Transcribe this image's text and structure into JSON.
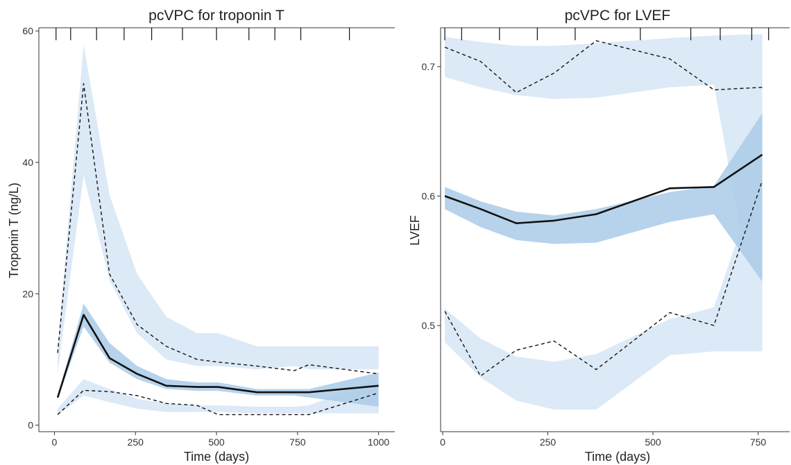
{
  "colors": {
    "pi_outer_band": "#dce9f6",
    "pi_median_band": "#aacbe8",
    "observed_median": "#111111",
    "observed_percentiles": "#111111",
    "axis": "#333333"
  },
  "chart_data": [
    {
      "type": "line",
      "title": "pcVPC for troponin T",
      "xlabel": "Time (days)",
      "ylabel": "Troponin T (ng/L)",
      "xlim": [
        -48,
        1050
      ],
      "ylim": [
        -1,
        60.5
      ],
      "xticks": [
        0,
        250,
        500,
        750,
        1000
      ],
      "xtick_labels": [
        "0",
        "250",
        "500",
        "750",
        "1000"
      ],
      "yticks": [
        0,
        20,
        40,
        60
      ],
      "ytick_labels": [
        "0",
        "20",
        "40",
        "60"
      ],
      "bin_markers": [
        5,
        50,
        130,
        215,
        300,
        395,
        500,
        600,
        680,
        760,
        910
      ],
      "grid": false,
      "x": [
        10,
        90,
        170,
        255,
        345,
        440,
        505,
        625,
        740,
        785,
        1000
      ],
      "bands": {
        "upper_pi": {
          "low": [
            8,
            38,
            22,
            14,
            10,
            9,
            9,
            8.5,
            9,
            8.5,
            8.5
          ],
          "high": [
            12,
            58,
            35,
            23,
            16.5,
            14,
            14,
            12,
            12,
            12,
            12
          ]
        },
        "median_pi": {
          "low": [
            4,
            15,
            9.5,
            7,
            5.5,
            5.2,
            5.2,
            4.5,
            4.5,
            4.2,
            2.8
          ],
          "high": [
            4.5,
            18.5,
            12.5,
            9,
            7,
            6.5,
            6.5,
            5.5,
            5.5,
            5.5,
            8
          ]
        },
        "lower_pi": {
          "low": [
            1.5,
            4.5,
            3.5,
            2.5,
            2,
            2,
            2,
            1.8,
            1.8,
            1.8,
            1.8
          ],
          "high": [
            2.5,
            7,
            5.5,
            4,
            3.3,
            3,
            3,
            2.8,
            2.8,
            3,
            7
          ]
        }
      },
      "series": [
        {
          "style": "solid",
          "values": [
            4.2,
            16.8,
            10.2,
            7.8,
            6.0,
            5.8,
            5.8,
            5.0,
            5.0,
            5.0,
            6.0
          ]
        },
        {
          "style": "dashed",
          "values": [
            11,
            52,
            23,
            15.3,
            12,
            10,
            9.6,
            9,
            8.3,
            9.2,
            7.8
          ]
        },
        {
          "style": "dashed",
          "values": [
            1.6,
            5.3,
            5.1,
            4.5,
            3.3,
            3.0,
            1.6,
            1.6,
            1.6,
            1.6,
            4.9
          ]
        }
      ]
    },
    {
      "type": "line",
      "title": "pcVPC for LVEF",
      "xlabel": "Time (days)",
      "ylabel": "LVEF",
      "xlim": [
        -5,
        825
      ],
      "ylim": [
        0.418,
        0.73
      ],
      "xticks": [
        0,
        250,
        500,
        750
      ],
      "xtick_labels": [
        "0",
        "250",
        "500",
        "750"
      ],
      "yticks": [
        0.5,
        0.6,
        0.7
      ],
      "ytick_labels": [
        "0.5",
        "0.6",
        "0.7"
      ],
      "bin_markers": [
        5,
        45,
        135,
        225,
        315,
        470,
        590,
        660,
        735,
        775
      ],
      "grid": false,
      "x": [
        5,
        90,
        175,
        265,
        365,
        540,
        645,
        760
      ],
      "bands": {
        "upper_pi": {
          "low": [
            0.692,
            0.684,
            0.678,
            0.675,
            0.676,
            0.684,
            0.686,
            0.48
          ],
          "high": [
            0.723,
            0.719,
            0.716,
            0.716,
            0.718,
            0.722,
            0.724,
            0.725
          ]
        },
        "median_pi": {
          "low": [
            0.59,
            0.576,
            0.566,
            0.563,
            0.564,
            0.58,
            0.586,
            0.534
          ],
          "high": [
            0.607,
            0.596,
            0.588,
            0.585,
            0.59,
            0.603,
            0.608,
            0.664
          ]
        },
        "lower_pi": {
          "low": [
            0.487,
            0.46,
            0.442,
            0.435,
            0.435,
            0.477,
            0.48,
            0.48
          ],
          "high": [
            0.513,
            0.49,
            0.476,
            0.472,
            0.478,
            0.505,
            0.514,
            0.622
          ]
        }
      },
      "series": [
        {
          "style": "solid",
          "values": [
            0.6,
            0.59,
            0.579,
            0.581,
            0.586,
            0.606,
            0.607,
            0.632
          ]
        },
        {
          "style": "dashed",
          "values": [
            0.715,
            0.704,
            0.68,
            0.695,
            0.72,
            0.706,
            0.682,
            0.684
          ]
        },
        {
          "style": "dashed",
          "values": [
            0.511,
            0.461,
            0.481,
            0.488,
            0.466,
            0.51,
            0.5,
            0.612
          ]
        }
      ]
    }
  ]
}
